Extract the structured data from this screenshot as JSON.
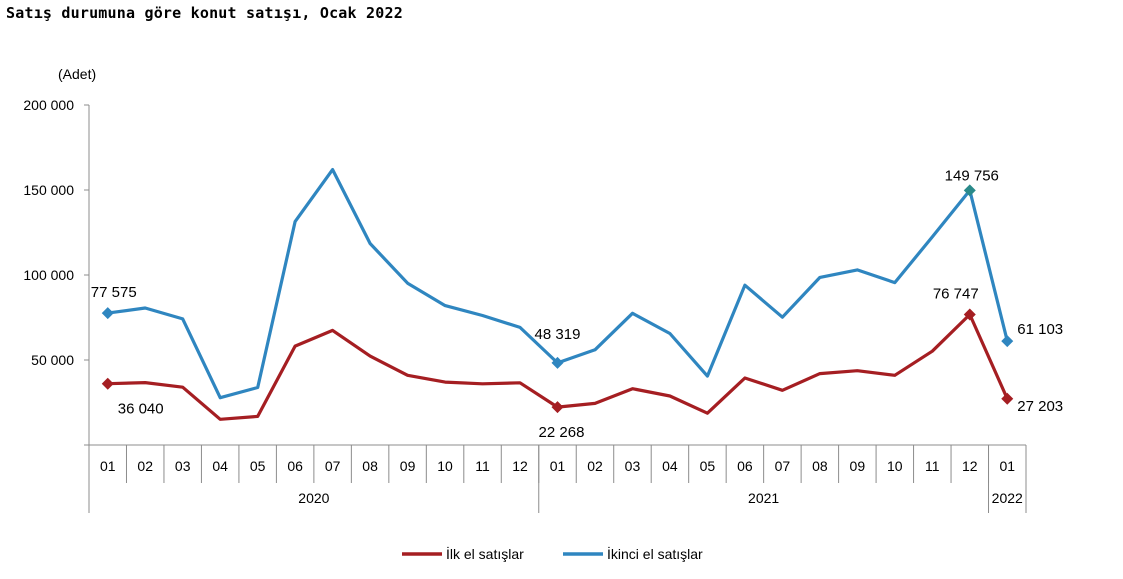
{
  "chart_data": {
    "type": "line",
    "title": "Satış durumuna göre konut satışı, Ocak 2022",
    "ylabel": "(Adet)",
    "xlabel": "",
    "ylim": [
      0,
      200000
    ],
    "yticks": [
      0,
      50000,
      100000,
      150000,
      200000
    ],
    "ytick_labels": [
      "",
      "50 000",
      "100 000",
      "150 000",
      "200 000"
    ],
    "categories": [
      "01",
      "02",
      "03",
      "04",
      "05",
      "06",
      "07",
      "08",
      "09",
      "10",
      "11",
      "12",
      "01",
      "02",
      "03",
      "04",
      "05",
      "06",
      "07",
      "08",
      "09",
      "10",
      "11",
      "12",
      "01"
    ],
    "year_groups": [
      {
        "label": "2020",
        "start": 0,
        "end": 11
      },
      {
        "label": "2021",
        "start": 12,
        "end": 23
      },
      {
        "label": "2022",
        "start": 24,
        "end": 24
      }
    ],
    "series": [
      {
        "name": "İlk el satışlar",
        "color": "#A51E22",
        "values": [
          36040,
          36700,
          34000,
          15100,
          16800,
          58200,
          67400,
          52300,
          41000,
          37000,
          36000,
          36600,
          22268,
          24500,
          33100,
          28800,
          18700,
          39400,
          32200,
          42000,
          43700,
          41000,
          55200,
          76747,
          27203
        ],
        "labeled_points": [
          {
            "index": 0,
            "label": "36 040"
          },
          {
            "index": 12,
            "label": "22 268"
          },
          {
            "index": 23,
            "label": "76 747"
          },
          {
            "index": 24,
            "label": "27 203"
          }
        ]
      },
      {
        "name": "İkinci el satışlar",
        "color": "#2F86C0",
        "values": [
          77575,
          80600,
          74200,
          27800,
          33800,
          131400,
          162000,
          118500,
          95200,
          82000,
          76200,
          69200,
          48319,
          56000,
          77500,
          65600,
          40500,
          94000,
          75200,
          98600,
          103000,
          95500,
          122400,
          149756,
          61103
        ],
        "labeled_points": [
          {
            "index": 0,
            "label": "77 575"
          },
          {
            "index": 12,
            "label": "48 319"
          },
          {
            "index": 23,
            "label": "149 756"
          },
          {
            "index": 24,
            "label": "61 103"
          }
        ]
      }
    ],
    "legend_position": "bottom-center",
    "grid": false
  }
}
